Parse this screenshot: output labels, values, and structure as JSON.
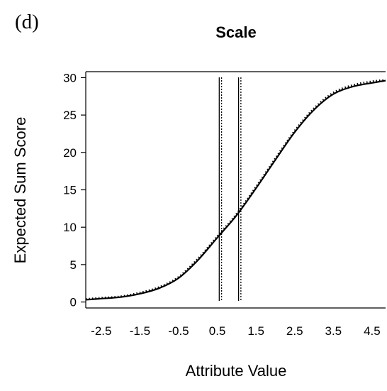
{
  "panel_label": "(d)",
  "chart_data": {
    "type": "line",
    "title": "Scale",
    "xlabel": "Attribute Value",
    "ylabel": "Expected Sum Score",
    "xlim": [
      -2.9,
      4.85
    ],
    "ylim": [
      -0.8,
      30.8
    ],
    "x_ticks": [
      -2.5,
      -1.5,
      -0.5,
      0.5,
      1.5,
      2.5,
      3.5,
      4.5
    ],
    "x_tick_labels": [
      "-2.5",
      "-1.5",
      "-0.5",
      "0.5",
      "1.5",
      "2.5",
      "3.5",
      "4.5"
    ],
    "y_ticks": [
      0,
      5,
      10,
      15,
      20,
      25,
      30
    ],
    "y_tick_labels": [
      "0",
      "5",
      "10",
      "15",
      "20",
      "25",
      "30"
    ],
    "series": [
      {
        "style": "solid",
        "x": [
          -2.9,
          -2.5,
          -2.0,
          -1.5,
          -1.0,
          -0.5,
          0.0,
          0.5,
          1.0,
          1.5,
          2.0,
          2.5,
          3.0,
          3.5,
          4.0,
          4.5,
          4.85
        ],
        "y": [
          0.3,
          0.45,
          0.65,
          1.1,
          1.85,
          3.2,
          5.6,
          8.6,
          11.6,
          15.2,
          19.0,
          22.7,
          25.7,
          27.8,
          28.8,
          29.3,
          29.6
        ]
      },
      {
        "style": "dotted",
        "x": [
          -2.9,
          -2.5,
          -2.0,
          -1.5,
          -1.0,
          -0.5,
          0.0,
          0.5,
          1.0,
          1.5,
          2.0,
          2.5,
          3.0,
          3.5,
          4.0,
          4.5,
          4.85
        ],
        "y": [
          0.4,
          0.55,
          0.75,
          1.25,
          2.0,
          3.35,
          5.8,
          8.8,
          11.8,
          15.4,
          19.2,
          22.9,
          25.9,
          28.0,
          29.0,
          29.5,
          29.7
        ]
      }
    ],
    "vertical_lines": [
      {
        "x": 0.55,
        "style": "solid"
      },
      {
        "x": 0.61,
        "style": "dotted"
      },
      {
        "x": 1.05,
        "style": "solid"
      },
      {
        "x": 1.11,
        "style": "dotted"
      }
    ],
    "grid": false,
    "legend": "none"
  }
}
